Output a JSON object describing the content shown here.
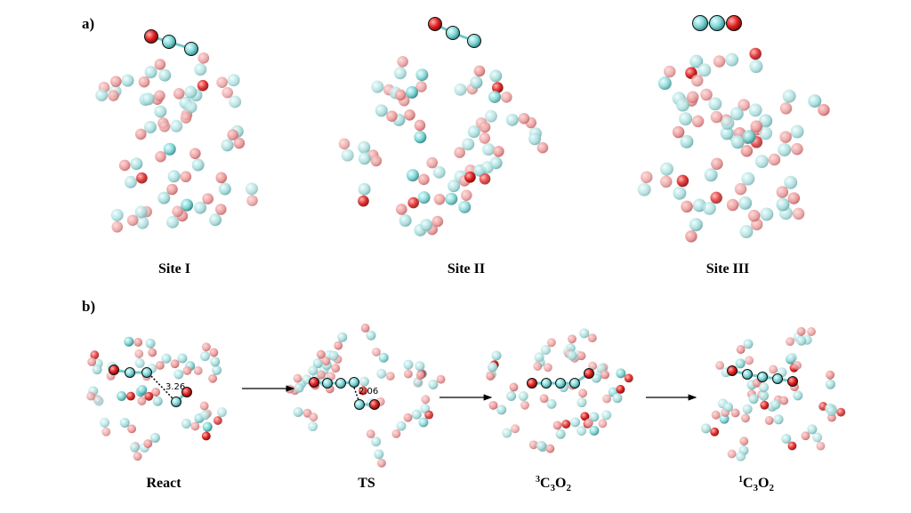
{
  "panel_a": {
    "label": "a)",
    "sites": [
      {
        "name": "Site I",
        "adsorbate": "O-C-C"
      },
      {
        "name": "Site II",
        "adsorbate": "O-C-C"
      },
      {
        "name": "Site III",
        "adsorbate": "C-C-O"
      }
    ]
  },
  "panel_b": {
    "label": "b)",
    "states": [
      {
        "name": "React",
        "distance": "3.26"
      },
      {
        "name": "TS",
        "distance": "2.06"
      },
      {
        "name_sup": "3",
        "name_main": "C",
        "name_sub1": "3",
        "name_o": "O",
        "name_sub2": "2"
      },
      {
        "name_sup": "1",
        "name_main": "C",
        "name_sub1": "3",
        "name_o": "O",
        "name_sub2": "2"
      }
    ]
  },
  "colors": {
    "carbon": "#7ed6d6",
    "carbon_faded": "#a9dcdc",
    "oxygen": "#e01e1e",
    "oxygen_faded": "#e89a9a",
    "bond": "#6ec9c9"
  }
}
